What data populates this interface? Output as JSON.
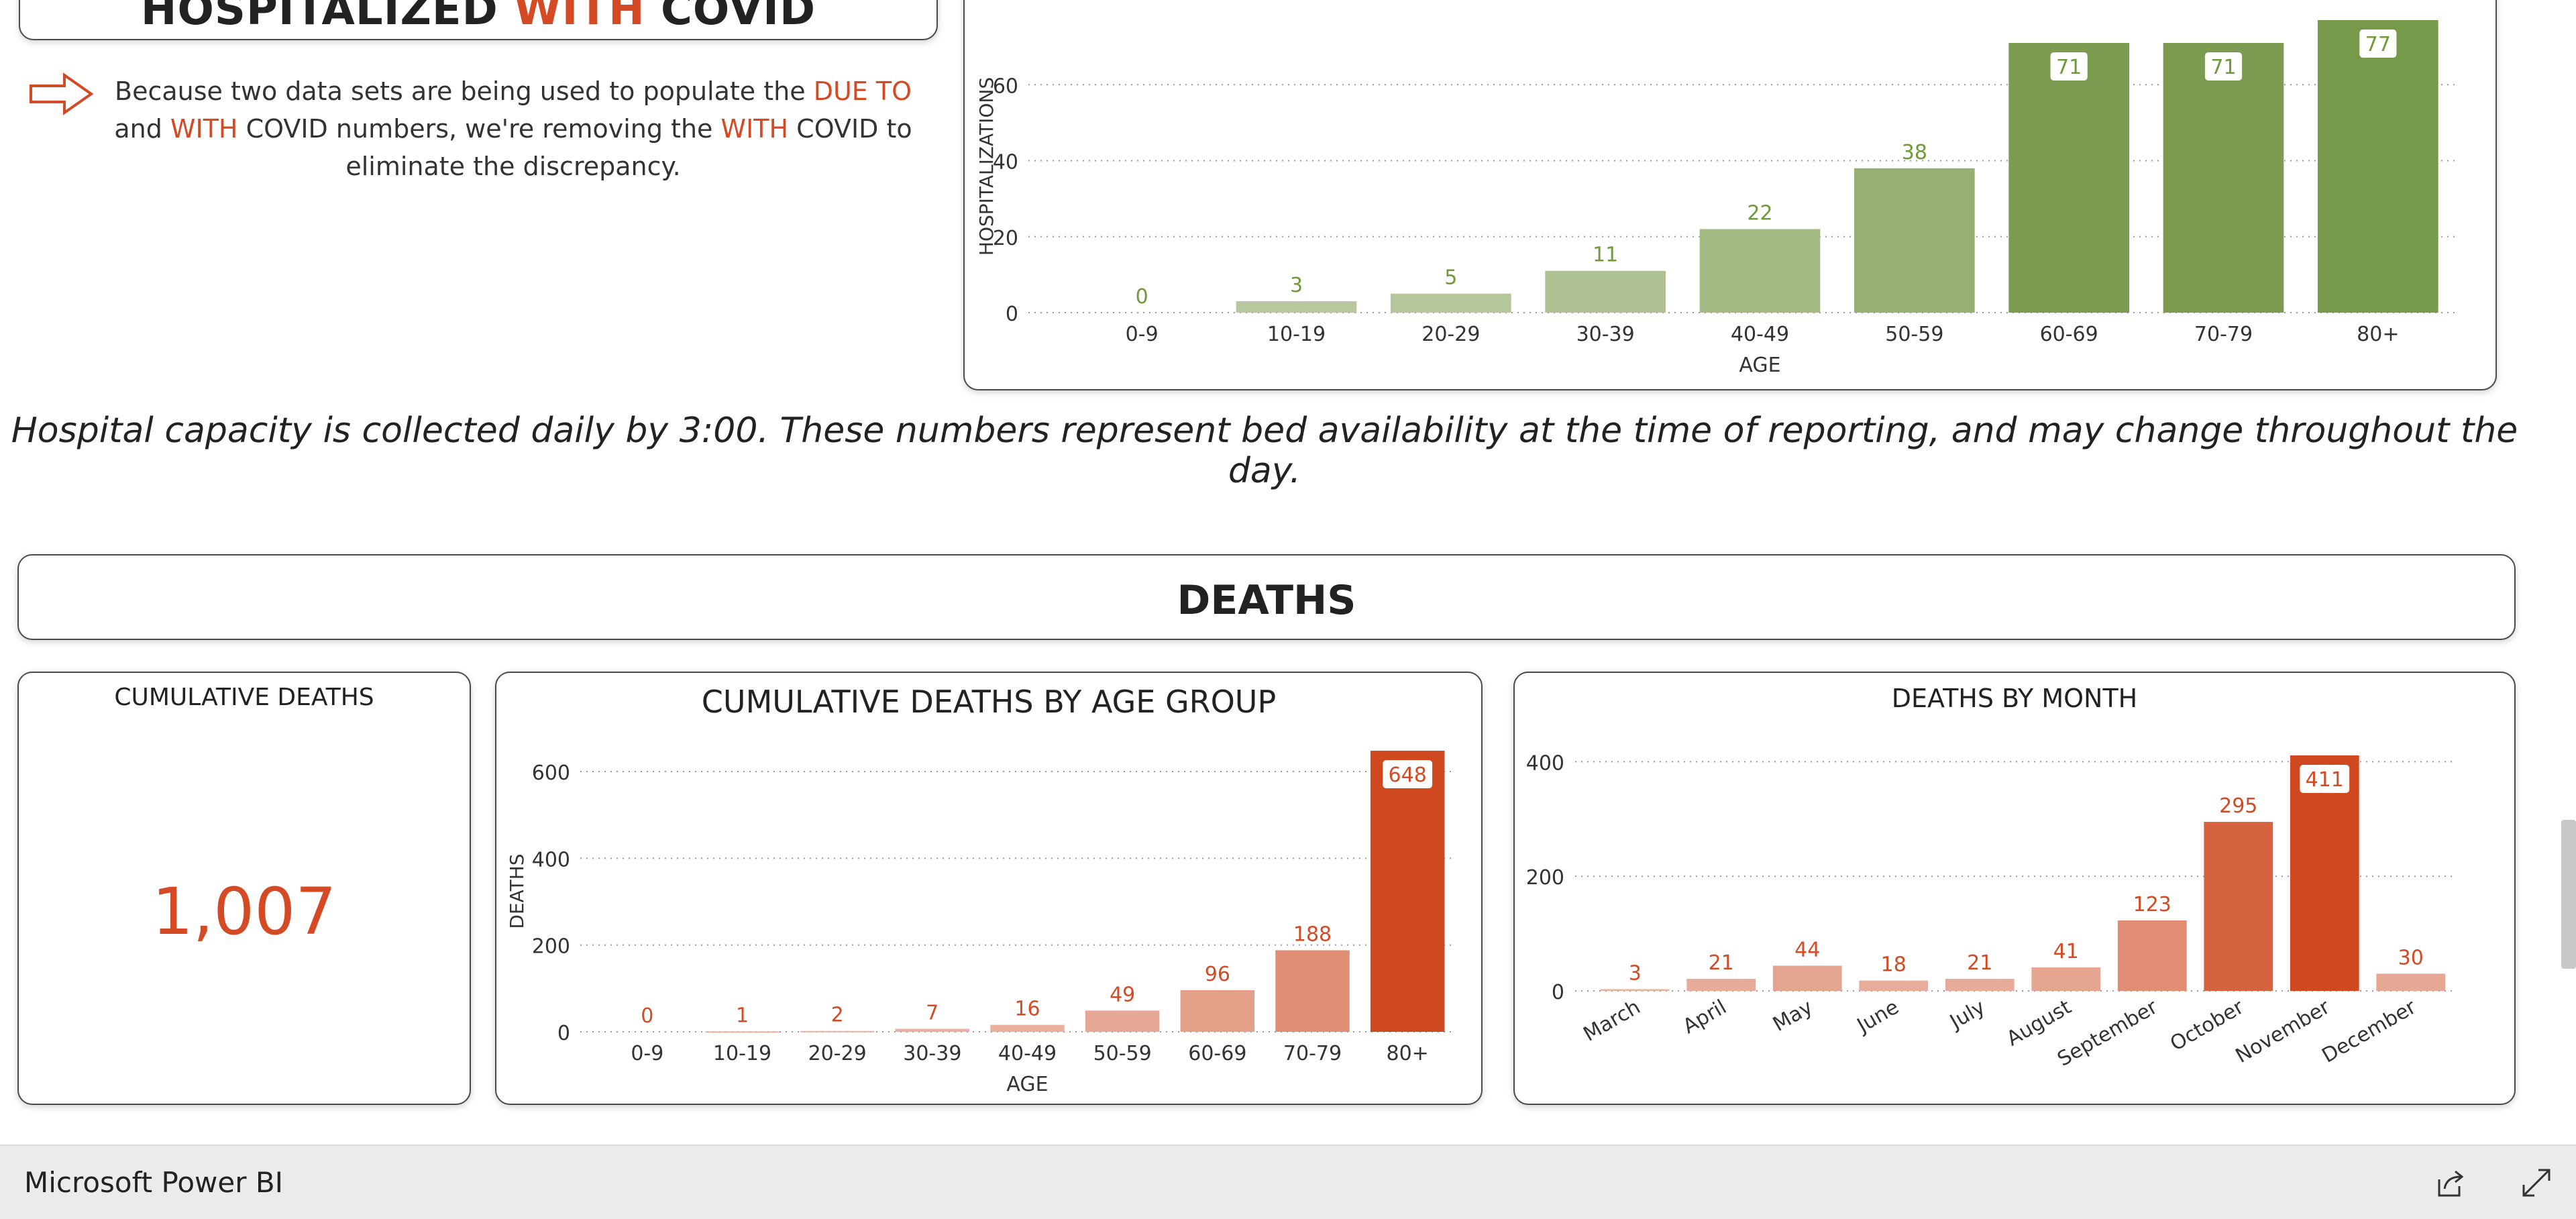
{
  "hospitalized_section": {
    "title_prefix": "HOSPITALIZED ",
    "title_highlight": "WITH",
    "title_suffix": " COVID",
    "note": {
      "part1": "Because two data sets are being used to populate the ",
      "due_to": "DUE TO",
      "part2": " and ",
      "with1": "WITH",
      "part3": " COVID numbers, we're removing the ",
      "with2": "WITH",
      "part4": " COVID to eliminate the discrepancy."
    },
    "arrow_icon": "right-arrow-outline-icon"
  },
  "capacity_note": "Hospital capacity is collected daily by 3:00. These numbers represent bed availability at the time of reporting, and may change throughout the day.",
  "deaths_section": {
    "title": "DEATHS",
    "cumulative_label": "CUMULATIVE DEATHS",
    "cumulative_value": "1,007",
    "age_chart_title": "CUMULATIVE DEATHS BY AGE GROUP",
    "month_chart_title": "DEATHS BY MONTH"
  },
  "colors": {
    "green_dark": "#76994a",
    "green_light": "#bccba4",
    "orange_dark": "#d04820",
    "orange_light": "#e9b4a3",
    "label_orange": "#d34a24",
    "label_green": "#6e9a38"
  },
  "footer": {
    "brand": "Microsoft Power BI",
    "share_icon": "share-icon",
    "expand_icon": "expand-icon"
  },
  "chart_data": [
    {
      "id": "hospitalizations-by-age",
      "type": "bar",
      "title": "",
      "xlabel": "AGE",
      "ylabel": "HOSPITALIZATIONS",
      "categories": [
        "0-9",
        "10-19",
        "20-29",
        "30-39",
        "40-49",
        "50-59",
        "60-69",
        "70-79",
        "80+"
      ],
      "values": [
        0,
        3,
        5,
        11,
        22,
        38,
        71,
        71,
        77
      ],
      "ylim": [
        0,
        77
      ],
      "yticks": [
        0,
        20,
        40,
        60
      ],
      "grid": true,
      "color_scale": [
        "#bccba4",
        "#76994a"
      ]
    },
    {
      "id": "deaths-by-age",
      "type": "bar",
      "title": "CUMULATIVE DEATHS BY AGE GROUP",
      "xlabel": "AGE",
      "ylabel": "DEATHS",
      "categories": [
        "0-9",
        "10-19",
        "20-29",
        "30-39",
        "40-49",
        "50-59",
        "60-69",
        "70-79",
        "80+"
      ],
      "values": [
        0,
        1,
        2,
        7,
        16,
        49,
        96,
        188,
        648
      ],
      "ylim": [
        0,
        648
      ],
      "yticks": [
        0,
        200,
        400,
        600
      ],
      "grid": true,
      "color_scale": [
        "#e9b4a3",
        "#d04820"
      ]
    },
    {
      "id": "deaths-by-month",
      "type": "bar",
      "title": "DEATHS BY MONTH",
      "xlabel": "",
      "ylabel": "",
      "categories": [
        "March",
        "April",
        "May",
        "June",
        "July",
        "August",
        "September",
        "October",
        "November",
        "December"
      ],
      "values": [
        3,
        21,
        44,
        18,
        21,
        41,
        123,
        295,
        411,
        30
      ],
      "ylim": [
        0,
        411
      ],
      "yticks": [
        0,
        200,
        400
      ],
      "grid": true,
      "color_scale": [
        "#e9b4a3",
        "#d04820"
      ]
    }
  ]
}
